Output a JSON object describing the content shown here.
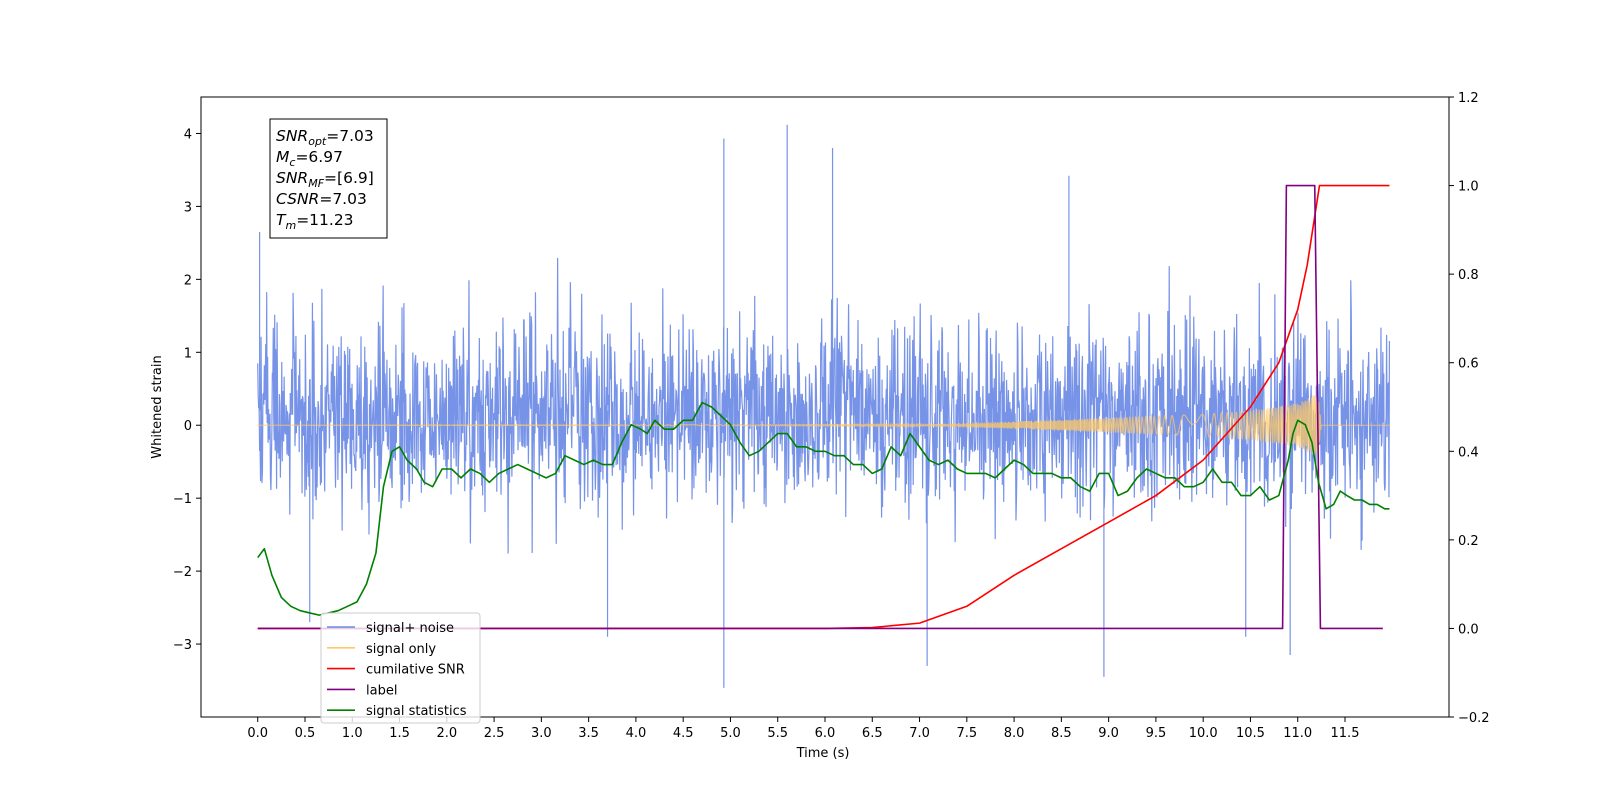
{
  "chart_data": {
    "type": "line",
    "xlabel": "Time (s)",
    "ylabel_left": "Whitened strain",
    "xlim": [
      -0.6,
      12.6
    ],
    "ylim_left": [
      -4,
      4.5
    ],
    "ylim_right": [
      -0.2,
      1.2
    ],
    "x_ticks": [
      0.0,
      0.5,
      1.0,
      1.5,
      2.0,
      2.5,
      3.0,
      3.5,
      4.0,
      4.5,
      5.0,
      5.5,
      6.0,
      6.5,
      7.0,
      7.5,
      8.0,
      8.5,
      9.0,
      9.5,
      10.0,
      10.5,
      11.0,
      11.5
    ],
    "y_ticks_left": [
      -3,
      -2,
      -1,
      0,
      1,
      2,
      3,
      4
    ],
    "y_ticks_right": [
      -0.2,
      0.0,
      0.2,
      0.4,
      0.6,
      0.8,
      1.0,
      1.2
    ],
    "stats_box": [
      {
        "base": "SNR",
        "sub": "opt",
        "value": "=7.03"
      },
      {
        "base": "M",
        "sub": "c",
        "value": "=6.97"
      },
      {
        "base": "SNR",
        "sub": "MF",
        "value": "=[6.9]"
      },
      {
        "base": "CSNR",
        "sub": "",
        "value": "=7.03"
      },
      {
        "base": "T",
        "sub": "m",
        "value": "=11.23"
      }
    ],
    "legend": {
      "placement": "lower-left",
      "entries": [
        {
          "label": "signal+ noise",
          "color": "#6b8ae6"
        },
        {
          "label": "signal only",
          "color": "#ffc866"
        },
        {
          "label": "cumilative SNR",
          "color": "#ff0000"
        },
        {
          "label": "label",
          "color": "#800080"
        },
        {
          "label": "signal statistics",
          "color": "#008000"
        }
      ]
    },
    "series": [
      {
        "name": "signal+ noise",
        "axis": "left",
        "color": "#6b8ae6",
        "x_range": [
          0.0,
          11.97
        ],
        "envelope": {
          "typical_max": 1.8,
          "typical_min": -1.5,
          "spike_max": 4.12,
          "spike_min": -3.6
        },
        "spikes": [
          {
            "x": 0.02,
            "y": 2.65
          },
          {
            "x": 4.93,
            "y": 3.93
          },
          {
            "x": 5.6,
            "y": 4.12
          },
          {
            "x": 6.08,
            "y": 3.8
          },
          {
            "x": 8.58,
            "y": 3.42
          },
          {
            "x": 4.93,
            "y": -3.6
          },
          {
            "x": 8.95,
            "y": -3.45
          },
          {
            "x": 7.08,
            "y": -3.3
          },
          {
            "x": 10.92,
            "y": -3.15
          },
          {
            "x": 3.7,
            "y": -2.9
          },
          {
            "x": 10.45,
            "y": -2.9
          },
          {
            "x": 0.55,
            "y": -2.7
          }
        ]
      },
      {
        "name": "signal only",
        "axis": "left",
        "color": "#ffc866",
        "x": [
          0.0,
          7.0,
          8.0,
          9.0,
          10.0,
          10.5,
          11.0,
          11.22,
          11.25,
          11.97
        ],
        "amplitude": [
          0.0,
          0.01,
          0.05,
          0.1,
          0.15,
          0.2,
          0.3,
          0.45,
          0.0,
          0.0
        ]
      },
      {
        "name": "cumilative SNR",
        "axis": "right",
        "color": "#ff0000",
        "x": [
          0.0,
          6.0,
          6.5,
          7.0,
          7.5,
          8.0,
          8.5,
          9.0,
          9.5,
          10.0,
          10.5,
          10.8,
          11.0,
          11.1,
          11.23,
          11.97
        ],
        "y": [
          0.0,
          0.0,
          0.002,
          0.012,
          0.05,
          0.12,
          0.18,
          0.24,
          0.3,
          0.38,
          0.5,
          0.6,
          0.72,
          0.82,
          1.0,
          1.0
        ]
      },
      {
        "name": "label",
        "axis": "right",
        "color": "#800080",
        "x": [
          0.0,
          10.84,
          10.88,
          11.18,
          11.24,
          11.9
        ],
        "y": [
          0.0,
          0.0,
          1.0,
          1.0,
          0.0,
          0.0
        ]
      },
      {
        "name": "signal statistics",
        "axis": "right",
        "color": "#008000",
        "x": [
          0.0,
          0.07,
          0.15,
          0.25,
          0.35,
          0.45,
          0.55,
          0.65,
          0.75,
          0.85,
          0.95,
          1.05,
          1.15,
          1.25,
          1.33,
          1.42,
          1.5,
          1.58,
          1.68,
          1.76,
          1.85,
          1.95,
          2.05,
          2.15,
          2.25,
          2.35,
          2.45,
          2.55,
          2.65,
          2.75,
          2.85,
          2.95,
          3.05,
          3.15,
          3.25,
          3.35,
          3.45,
          3.55,
          3.65,
          3.75,
          3.85,
          3.95,
          4.05,
          4.12,
          4.2,
          4.3,
          4.4,
          4.5,
          4.6,
          4.7,
          4.8,
          4.9,
          5.0,
          5.1,
          5.2,
          5.3,
          5.4,
          5.5,
          5.6,
          5.7,
          5.8,
          5.9,
          6.0,
          6.1,
          6.2,
          6.3,
          6.4,
          6.5,
          6.6,
          6.7,
          6.8,
          6.9,
          7.0,
          7.1,
          7.2,
          7.3,
          7.4,
          7.5,
          7.6,
          7.7,
          7.8,
          7.9,
          8.0,
          8.1,
          8.2,
          8.3,
          8.4,
          8.5,
          8.6,
          8.7,
          8.8,
          8.9,
          9.0,
          9.1,
          9.2,
          9.3,
          9.4,
          9.5,
          9.6,
          9.7,
          9.8,
          9.9,
          10.0,
          10.1,
          10.2,
          10.3,
          10.4,
          10.5,
          10.6,
          10.7,
          10.8,
          10.9,
          10.95,
          11.0,
          11.08,
          11.15,
          11.22,
          11.3,
          11.38,
          11.45,
          11.52,
          11.6,
          11.68,
          11.76,
          11.84,
          11.92,
          11.97
        ],
        "y": [
          0.16,
          0.18,
          0.12,
          0.07,
          0.05,
          0.04,
          0.035,
          0.03,
          0.035,
          0.04,
          0.05,
          0.06,
          0.1,
          0.17,
          0.32,
          0.4,
          0.41,
          0.38,
          0.36,
          0.33,
          0.32,
          0.36,
          0.36,
          0.34,
          0.36,
          0.35,
          0.33,
          0.35,
          0.36,
          0.37,
          0.36,
          0.35,
          0.34,
          0.35,
          0.39,
          0.38,
          0.37,
          0.38,
          0.37,
          0.37,
          0.42,
          0.46,
          0.45,
          0.44,
          0.47,
          0.45,
          0.45,
          0.47,
          0.47,
          0.51,
          0.5,
          0.48,
          0.46,
          0.42,
          0.39,
          0.4,
          0.42,
          0.44,
          0.44,
          0.41,
          0.41,
          0.4,
          0.4,
          0.39,
          0.39,
          0.37,
          0.37,
          0.35,
          0.36,
          0.41,
          0.39,
          0.44,
          0.41,
          0.38,
          0.37,
          0.38,
          0.36,
          0.35,
          0.35,
          0.35,
          0.34,
          0.36,
          0.38,
          0.37,
          0.35,
          0.35,
          0.35,
          0.34,
          0.34,
          0.32,
          0.31,
          0.35,
          0.35,
          0.3,
          0.31,
          0.34,
          0.36,
          0.35,
          0.34,
          0.34,
          0.32,
          0.32,
          0.33,
          0.36,
          0.33,
          0.33,
          0.3,
          0.3,
          0.32,
          0.29,
          0.3,
          0.38,
          0.44,
          0.47,
          0.46,
          0.42,
          0.33,
          0.27,
          0.28,
          0.31,
          0.3,
          0.29,
          0.29,
          0.28,
          0.28,
          0.27,
          0.27
        ]
      }
    ]
  }
}
